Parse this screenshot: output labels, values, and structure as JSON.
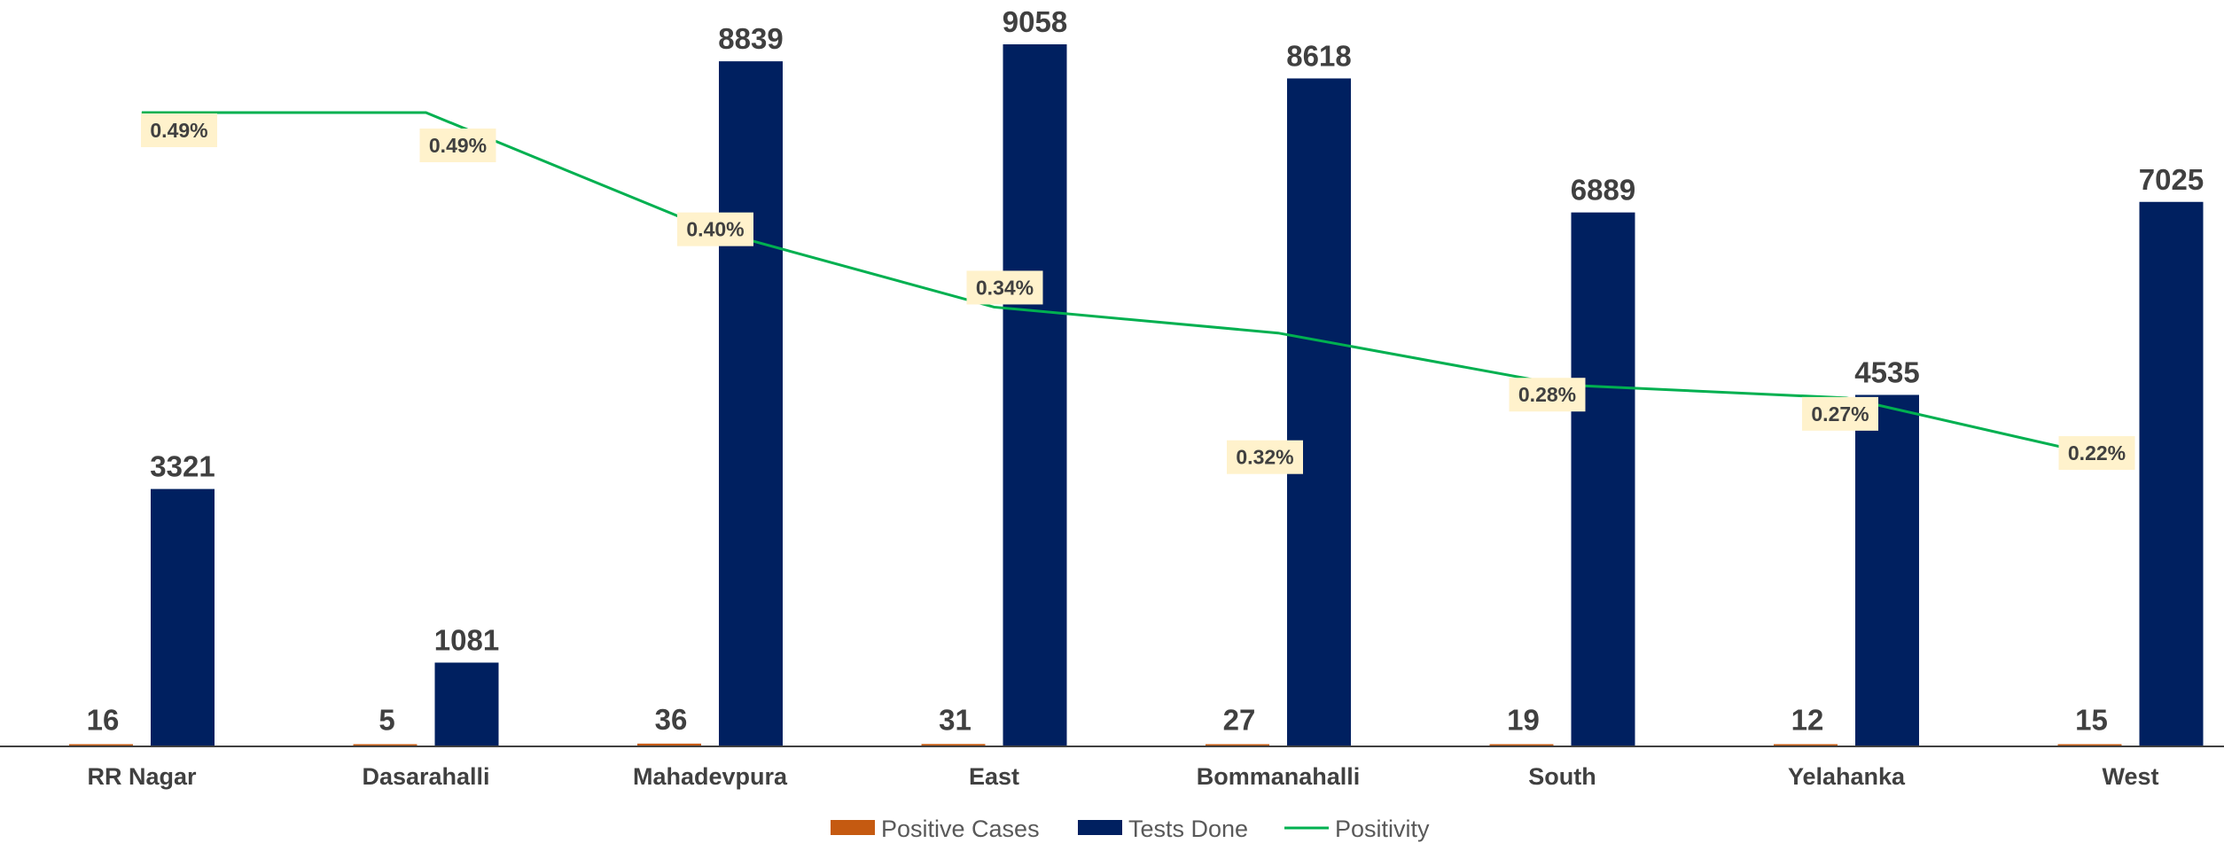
{
  "chart_data": {
    "type": "bar",
    "categories": [
      "RR Nagar",
      "Dasarahalli",
      "Mahadevpura",
      "East",
      "Bommanahalli",
      "South",
      "Yelahanka",
      "West"
    ],
    "series": [
      {
        "name": "Positive Cases",
        "kind": "bar",
        "color": "#C55A11",
        "values": [
          16,
          5,
          36,
          31,
          27,
          19,
          12,
          15
        ],
        "labels": [
          "16",
          "5",
          "36",
          "31",
          "27",
          "19",
          "12",
          "15"
        ]
      },
      {
        "name": "Tests Done",
        "kind": "bar",
        "color": "#002060",
        "values": [
          3321,
          1081,
          8839,
          9058,
          8618,
          6889,
          4535,
          7025
        ],
        "labels": [
          "3321",
          "1081",
          "8839",
          "9058",
          "8618",
          "6889",
          "4535",
          "7025"
        ]
      },
      {
        "name": "Positivity",
        "kind": "line",
        "color": "#00B050",
        "values": [
          0.49,
          0.49,
          0.4,
          0.34,
          0.32,
          0.28,
          0.27,
          0.22
        ],
        "labels": [
          "0.49%",
          "0.49%",
          "0.40%",
          "0.34%",
          "0.32%",
          "0.28%",
          "0.27%",
          "0.22%"
        ]
      }
    ],
    "grid": false,
    "legend_position": "bottom"
  },
  "colors": {
    "label_box": "#FFF2CC",
    "text": "#404040",
    "legend_text": "#595959",
    "axis": "#404040"
  }
}
